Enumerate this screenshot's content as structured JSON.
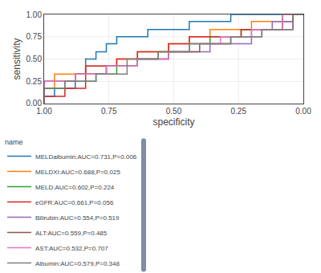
{
  "chart_data": {
    "type": "line",
    "xlabel": "specificity",
    "ylabel": "sensitivity",
    "legend_title": "name",
    "legend": "bottom",
    "grid": true,
    "xlim": [
      1.0,
      0.0
    ],
    "ylim": [
      0.0,
      1.0
    ],
    "xticks": [
      {
        "value": 1.0,
        "label": "1.00"
      },
      {
        "value": 0.75,
        "label": "0.75"
      },
      {
        "value": 0.5,
        "label": "0.50"
      },
      {
        "value": 0.25,
        "label": "0.25"
      },
      {
        "value": 0.0,
        "label": "0.00"
      }
    ],
    "yticks": [
      {
        "value": 0.0,
        "label": "0.00"
      },
      {
        "value": 0.25,
        "label": "0.25"
      },
      {
        "value": 0.5,
        "label": "0.50"
      },
      {
        "value": 0.75,
        "label": "0.75"
      },
      {
        "value": 1.0,
        "label": "1.00"
      }
    ],
    "series": [
      {
        "name": "MELDalbumin:AUC=0.731,P=0.006",
        "x": [
          1.0,
          1.0,
          0.96,
          0.96,
          0.88,
          0.88,
          0.84,
          0.84,
          0.8,
          0.8,
          0.76,
          0.76,
          0.72,
          0.72,
          0.6,
          0.6,
          0.44,
          0.44,
          0.36,
          0.36,
          0.28,
          0.28,
          0.16,
          0.16,
          0.08,
          0.08,
          0.0,
          0.0
        ],
        "values": [
          0.0,
          0.08,
          0.08,
          0.17,
          0.17,
          0.33,
          0.33,
          0.5,
          0.5,
          0.58,
          0.58,
          0.67,
          0.67,
          0.75,
          0.75,
          0.83,
          0.83,
          0.92,
          0.92,
          0.92,
          0.92,
          1.0,
          1.0,
          1.0,
          1.0,
          1.0,
          1.0,
          1.0
        ]
      },
      {
        "name": "MELDXI:AUC=0.688,P=0.025",
        "x": [
          1.0,
          1.0,
          0.96,
          0.96,
          0.84,
          0.84,
          0.72,
          0.72,
          0.64,
          0.64,
          0.52,
          0.52,
          0.44,
          0.44,
          0.36,
          0.36,
          0.2,
          0.2,
          0.08,
          0.08,
          0.0,
          0.0
        ],
        "values": [
          0.0,
          0.17,
          0.17,
          0.33,
          0.33,
          0.42,
          0.42,
          0.5,
          0.5,
          0.58,
          0.58,
          0.67,
          0.67,
          0.75,
          0.75,
          0.83,
          0.83,
          0.92,
          0.92,
          1.0,
          1.0,
          1.0
        ]
      },
      {
        "name": "MELD:AUC=0.602,P=0.224",
        "x": [
          1.0,
          1.0,
          0.92,
          0.92,
          0.8,
          0.8,
          0.72,
          0.72,
          0.64,
          0.64,
          0.56,
          0.56,
          0.44,
          0.44,
          0.36,
          0.36,
          0.24,
          0.24,
          0.08,
          0.08,
          0.0,
          0.0
        ],
        "values": [
          0.0,
          0.17,
          0.17,
          0.25,
          0.25,
          0.33,
          0.33,
          0.42,
          0.42,
          0.5,
          0.5,
          0.58,
          0.58,
          0.67,
          0.67,
          0.75,
          0.75,
          0.83,
          0.83,
          1.0,
          1.0,
          1.0
        ]
      },
      {
        "name": "eGFR:AUC=0.661,P=0.056",
        "x": [
          1.0,
          1.0,
          0.92,
          0.92,
          0.84,
          0.84,
          0.72,
          0.72,
          0.64,
          0.64,
          0.52,
          0.52,
          0.44,
          0.44,
          0.24,
          0.24,
          0.08,
          0.08,
          0.04,
          0.04,
          0.0,
          0.0
        ],
        "values": [
          0.0,
          0.08,
          0.08,
          0.17,
          0.17,
          0.42,
          0.42,
          0.5,
          0.5,
          0.58,
          0.58,
          0.67,
          0.67,
          0.75,
          0.75,
          0.83,
          0.83,
          0.92,
          0.92,
          1.0,
          1.0,
          1.0
        ]
      },
      {
        "name": "Bilirubin:AUC=0.554,P=0.519",
        "x": [
          1.0,
          1.0,
          0.88,
          0.88,
          0.76,
          0.76,
          0.64,
          0.64,
          0.52,
          0.52,
          0.36,
          0.36,
          0.2,
          0.2,
          0.12,
          0.12,
          0.04,
          0.04,
          0.0,
          0.0
        ],
        "values": [
          0.0,
          0.25,
          0.25,
          0.33,
          0.33,
          0.42,
          0.42,
          0.5,
          0.5,
          0.58,
          0.58,
          0.67,
          0.67,
          0.83,
          0.83,
          0.92,
          0.92,
          1.0,
          1.0,
          1.0
        ]
      },
      {
        "name": "ALT:AUC=0.559,P=0.485",
        "x": [
          1.0,
          1.0,
          0.88,
          0.88,
          0.76,
          0.76,
          0.64,
          0.64,
          0.52,
          0.52,
          0.4,
          0.4,
          0.28,
          0.28,
          0.16,
          0.16,
          0.04,
          0.04,
          0.0,
          0.0
        ],
        "values": [
          0.0,
          0.25,
          0.25,
          0.33,
          0.33,
          0.42,
          0.42,
          0.5,
          0.5,
          0.58,
          0.58,
          0.67,
          0.67,
          0.75,
          0.75,
          0.83,
          0.83,
          1.0,
          1.0,
          1.0
        ]
      },
      {
        "name": "AST:AUC=0.532,P=0.707",
        "x": [
          1.0,
          1.0,
          0.88,
          0.88,
          0.76,
          0.76,
          0.64,
          0.64,
          0.52,
          0.52,
          0.44,
          0.44,
          0.32,
          0.32,
          0.2,
          0.2,
          0.08,
          0.08,
          0.0,
          0.0
        ],
        "values": [
          0.0,
          0.25,
          0.25,
          0.33,
          0.33,
          0.42,
          0.42,
          0.5,
          0.5,
          0.58,
          0.58,
          0.67,
          0.67,
          0.75,
          0.75,
          0.83,
          0.83,
          1.0,
          1.0,
          1.0
        ]
      },
      {
        "name": "Albumin:AUC=0.579,P=0.348",
        "x": [
          1.0,
          1.0,
          0.92,
          0.92,
          0.8,
          0.8,
          0.68,
          0.68,
          0.56,
          0.56,
          0.44,
          0.44,
          0.28,
          0.28,
          0.16,
          0.16,
          0.04,
          0.04,
          0.0,
          0.0
        ],
        "values": [
          0.0,
          0.17,
          0.17,
          0.25,
          0.25,
          0.33,
          0.33,
          0.5,
          0.5,
          0.58,
          0.58,
          0.67,
          0.67,
          0.75,
          0.75,
          0.83,
          0.83,
          1.0,
          1.0,
          1.0
        ]
      }
    ]
  }
}
